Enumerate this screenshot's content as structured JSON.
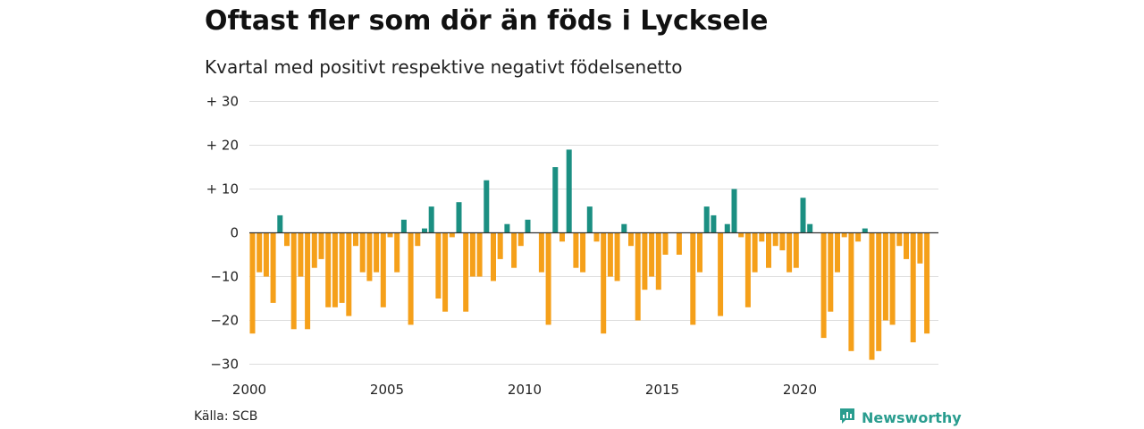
{
  "title": "Oftast fler som dör än föds i Lycksele",
  "subtitle": "Kvartal med positivt respektive negativt födelsenetto",
  "source": "Källa: SCB",
  "brand": {
    "name": "Newsworthy",
    "icon": "newsworthy-logo-icon"
  },
  "colors": {
    "positive": "#1b8f82",
    "negative": "#f5a01a",
    "grid": "#dddddd",
    "zero": "#333333"
  },
  "chart_data": {
    "type": "bar",
    "title": "Oftast fler som dör än föds i Lycksele",
    "subtitle": "Kvartal med positivt respektive negativt födelsenetto",
    "xlabel": "",
    "ylabel": "",
    "x_start": 2000,
    "periods_per_year": 4,
    "x_ticks": [
      2000,
      2005,
      2010,
      2015,
      2020
    ],
    "x_tick_labels": [
      "2000",
      "2005",
      "2010",
      "2015",
      "2020"
    ],
    "y_ticks": [
      30,
      20,
      10,
      0,
      -10,
      -20,
      -30
    ],
    "y_tick_labels": [
      "+ 30",
      "+ 20",
      "+ 10",
      "0",
      "−10",
      "−20",
      "−30"
    ],
    "ylim": [
      -31,
      30
    ],
    "grid": true,
    "values": [
      -23,
      -9,
      -10,
      -16,
      4,
      -3,
      -22,
      -10,
      -22,
      -8,
      -6,
      -17,
      -17,
      -16,
      -19,
      -3,
      -9,
      -11,
      -9,
      -17,
      -1,
      -9,
      3,
      -21,
      -3,
      1,
      6,
      -15,
      -18,
      -1,
      7,
      -18,
      -10,
      -10,
      12,
      -11,
      -6,
      2,
      -8,
      -3,
      3,
      0,
      -9,
      -21,
      15,
      -2,
      19,
      -8,
      -9,
      6,
      -2,
      -23,
      -10,
      -11,
      2,
      -3,
      -20,
      -13,
      -10,
      -13,
      -5,
      0,
      -5,
      0,
      -21,
      -9,
      6,
      4,
      -19,
      2,
      10,
      -1,
      -17,
      -9,
      -2,
      -8,
      -3,
      -4,
      -9,
      -8,
      8,
      2,
      0,
      -24,
      -18,
      -9,
      -1,
      -27,
      -2,
      1,
      -29,
      -27,
      -20,
      -21,
      -3,
      -6,
      -25,
      -7,
      -23
    ]
  }
}
